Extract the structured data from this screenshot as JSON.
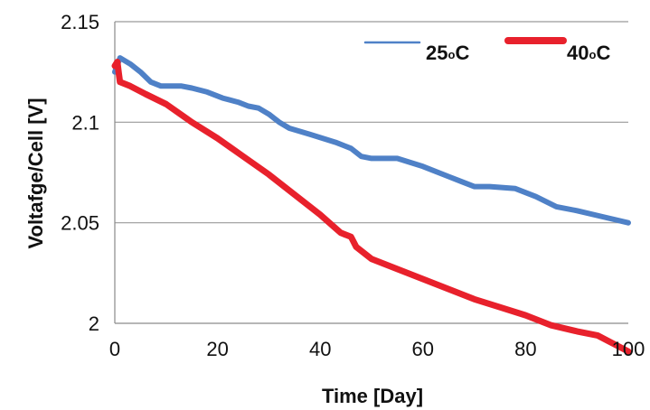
{
  "chart_data": {
    "type": "line",
    "xlabel": "Time [Day]",
    "ylabel": "Voltafge/Cell [V]",
    "xlim": [
      0,
      100
    ],
    "ylim": [
      2.0,
      2.15
    ],
    "xticks": [
      0,
      20,
      40,
      60,
      80,
      100
    ],
    "xtick_labels": [
      "0",
      "20",
      "40",
      "60",
      "80",
      "100"
    ],
    "yticks": [
      2.0,
      2.05,
      2.1,
      2.15
    ],
    "ytick_labels": [
      "2",
      "2.05",
      "2.1",
      "2.15"
    ],
    "grid": "horizontal",
    "legend_position": "top-right",
    "legend_title_labels": [
      "25",
      "40"
    ],
    "legend_unit": "C",
    "legend_degree_mark": "o",
    "series": [
      {
        "name": "25oC",
        "color": "#4f81c7",
        "x": [
          0,
          1,
          3,
          5,
          7,
          9,
          13,
          15,
          18,
          21,
          24,
          26,
          28,
          30,
          32,
          34,
          38,
          43,
          46,
          48,
          50,
          55,
          60,
          65,
          70,
          73,
          78,
          82,
          86,
          90,
          95,
          100
        ],
        "y": [
          2.125,
          2.132,
          2.129,
          2.125,
          2.12,
          2.118,
          2.118,
          2.117,
          2.115,
          2.112,
          2.11,
          2.108,
          2.107,
          2.104,
          2.1,
          2.097,
          2.094,
          2.09,
          2.087,
          2.083,
          2.082,
          2.082,
          2.078,
          2.073,
          2.068,
          2.068,
          2.067,
          2.063,
          2.058,
          2.056,
          2.053,
          2.05
        ]
      },
      {
        "name": "40oC",
        "color": "#e8212c",
        "x": [
          0,
          0.5,
          0.8,
          1,
          3,
          6,
          10,
          15,
          20,
          25,
          30,
          35,
          40,
          44,
          46,
          47,
          50,
          55,
          60,
          65,
          70,
          75,
          80,
          85,
          90,
          94,
          97,
          100
        ],
        "y": [
          2.128,
          2.13,
          2.124,
          2.12,
          2.118,
          2.114,
          2.109,
          2.1,
          2.092,
          2.083,
          2.074,
          2.064,
          2.054,
          2.045,
          2.043,
          2.038,
          2.032,
          2.027,
          2.022,
          2.017,
          2.012,
          2.008,
          2.004,
          1.999,
          1.996,
          1.994,
          1.99,
          1.986
        ]
      }
    ]
  }
}
